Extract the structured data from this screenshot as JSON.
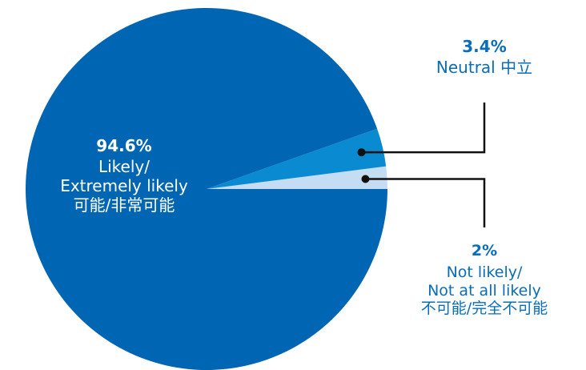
{
  "chart_data": {
    "type": "pie",
    "slices": [
      {
        "value": 94.6,
        "percent_label": "94.6%",
        "label_lines": [
          "Likely/",
          "Extremely likely",
          "可能/非常可能"
        ],
        "color": "#0066B3"
      },
      {
        "value": 3.4,
        "percent_label": "3.4%",
        "label_lines": [
          "Neutral 中立"
        ],
        "color": "#0A8AD0"
      },
      {
        "value": 2,
        "percent_label": "2%",
        "label_lines": [
          "Not likely/",
          "Not at all likely",
          "不可能/完全不可能"
        ],
        "color": "#C5DDF2"
      }
    ],
    "label_color": "#0A6DB8",
    "leader_color": "#111111"
  }
}
